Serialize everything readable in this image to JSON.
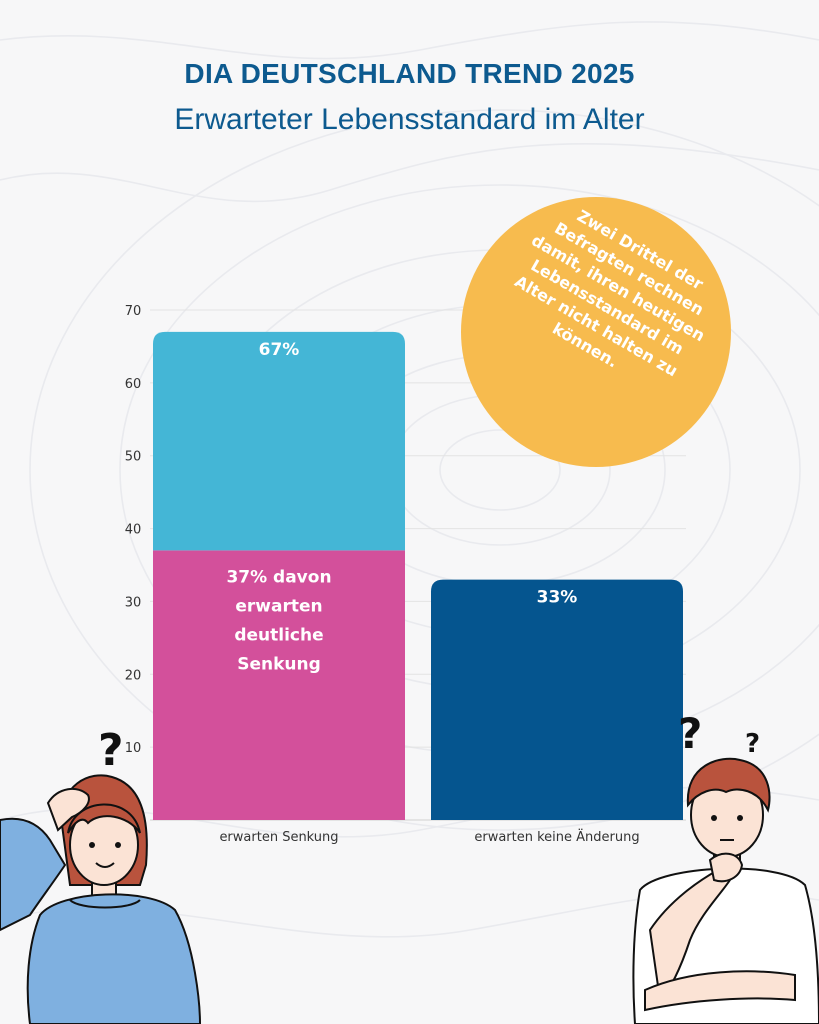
{
  "header": {
    "title": "DIA DEUTSCHLAND TREND 2025",
    "subtitle": "Erwarteter Lebensstandard im Alter"
  },
  "callout": {
    "lines": [
      "Zwei Drittel der",
      "Befragten rechnen",
      "damit, ihren heutigen",
      "Lebensstandard im",
      "Alter nicht halten zu",
      "können."
    ],
    "color": "#f7bb4e"
  },
  "chart_data": {
    "type": "bar",
    "stacked": true,
    "categories": [
      "erwarten Senkung",
      "erwarten keine Änderung"
    ],
    "ylim": [
      0,
      70
    ],
    "yticks": [
      10,
      20,
      30,
      40,
      50,
      60,
      70
    ],
    "grid": true,
    "bars": [
      {
        "category": "erwarten Senkung",
        "total": 67,
        "total_label": "67%",
        "segments": [
          {
            "value": 37,
            "color": "#d3509b",
            "label_lines": [
              "37% davon",
              "erwarten",
              "deutliche",
              "Senkung"
            ]
          },
          {
            "value": 30,
            "color": "#44b6d6"
          }
        ]
      },
      {
        "category": "erwarten keine Änderung",
        "total": 33,
        "total_label": "33%",
        "segments": [
          {
            "value": 33,
            "color": "#05558f"
          }
        ]
      }
    ]
  },
  "decor": {
    "question_mark": "?"
  }
}
